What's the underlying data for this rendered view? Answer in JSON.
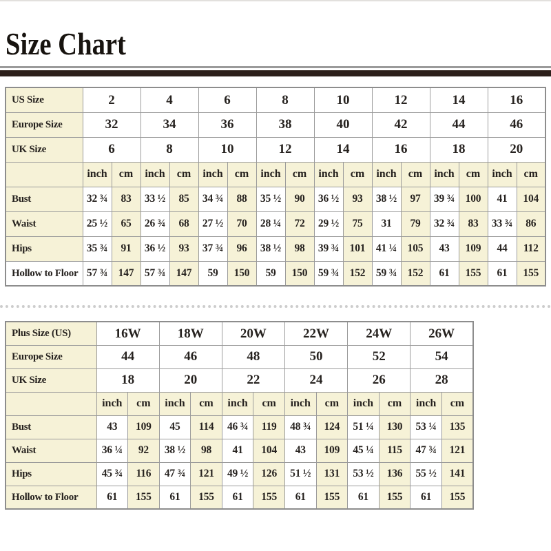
{
  "title": "Size Chart",
  "units": [
    "inch",
    "cm"
  ],
  "colors": {
    "cream": "#f6f2d7",
    "title_bar": "#2c1f1a",
    "grid_line": "#9b9b9b",
    "text": "#26221f"
  },
  "chart_data": [
    {
      "type": "table",
      "name": "standard-sizes",
      "size_rows": [
        {
          "label": "US Size",
          "values": [
            "2",
            "4",
            "6",
            "8",
            "10",
            "12",
            "14",
            "16"
          ]
        },
        {
          "label": "Europe Size",
          "values": [
            "32",
            "34",
            "36",
            "38",
            "40",
            "42",
            "44",
            "46"
          ]
        },
        {
          "label": "UK Size",
          "values": [
            "6",
            "8",
            "10",
            "12",
            "14",
            "16",
            "18",
            "20"
          ]
        }
      ],
      "unit_header": [
        "inch",
        "cm"
      ],
      "measure_rows": [
        {
          "label": "Bust",
          "values": [
            "32 ¾",
            "83",
            "33 ½",
            "85",
            "34 ¾",
            "88",
            "35 ½",
            "90",
            "36 ½",
            "93",
            "38 ½",
            "97",
            "39 ¾",
            "100",
            "41",
            "104"
          ]
        },
        {
          "label": "Waist",
          "values": [
            "25 ½",
            "65",
            "26 ¾",
            "68",
            "27 ½",
            "70",
            "28 ¼",
            "72",
            "29 ½",
            "75",
            "31",
            "79",
            "32 ¾",
            "83",
            "33 ¾",
            "86"
          ]
        },
        {
          "label": "Hips",
          "values": [
            "35 ¾",
            "91",
            "36 ½",
            "93",
            "37 ¾",
            "96",
            "38 ½",
            "98",
            "39 ¾",
            "101",
            "41 ¼",
            "105",
            "43",
            "109",
            "44",
            "112"
          ]
        },
        {
          "label": "Hollow to Floor",
          "values": [
            "57 ¾",
            "147",
            "57 ¾",
            "147",
            "59",
            "150",
            "59",
            "150",
            "59 ¾",
            "152",
            "59 ¾",
            "152",
            "61",
            "155",
            "61",
            "155"
          ]
        }
      ]
    },
    {
      "type": "table",
      "name": "plus-sizes",
      "size_rows": [
        {
          "label": "Plus Size (US)",
          "values": [
            "16W",
            "18W",
            "20W",
            "22W",
            "24W",
            "26W"
          ]
        },
        {
          "label": "Europe Size",
          "values": [
            "44",
            "46",
            "48",
            "50",
            "52",
            "54"
          ]
        },
        {
          "label": "UK Size",
          "values": [
            "18",
            "20",
            "22",
            "24",
            "26",
            "28"
          ]
        }
      ],
      "unit_header": [
        "inch",
        "cm"
      ],
      "measure_rows": [
        {
          "label": "Bust",
          "values": [
            "43",
            "109",
            "45",
            "114",
            "46 ¾",
            "119",
            "48 ¾",
            "124",
            "51 ¼",
            "130",
            "53 ¼",
            "135"
          ]
        },
        {
          "label": "Waist",
          "values": [
            "36 ¼",
            "92",
            "38 ½",
            "98",
            "41",
            "104",
            "43",
            "109",
            "45 ¼",
            "115",
            "47 ¾",
            "121"
          ]
        },
        {
          "label": "Hips",
          "values": [
            "45 ¾",
            "116",
            "47 ¾",
            "121",
            "49 ½",
            "126",
            "51 ½",
            "131",
            "53 ½",
            "136",
            "55 ½",
            "141"
          ]
        },
        {
          "label": "Hollow to Floor",
          "values": [
            "61",
            "155",
            "61",
            "155",
            "61",
            "155",
            "61",
            "155",
            "61",
            "155",
            "61",
            "155"
          ]
        }
      ]
    }
  ]
}
